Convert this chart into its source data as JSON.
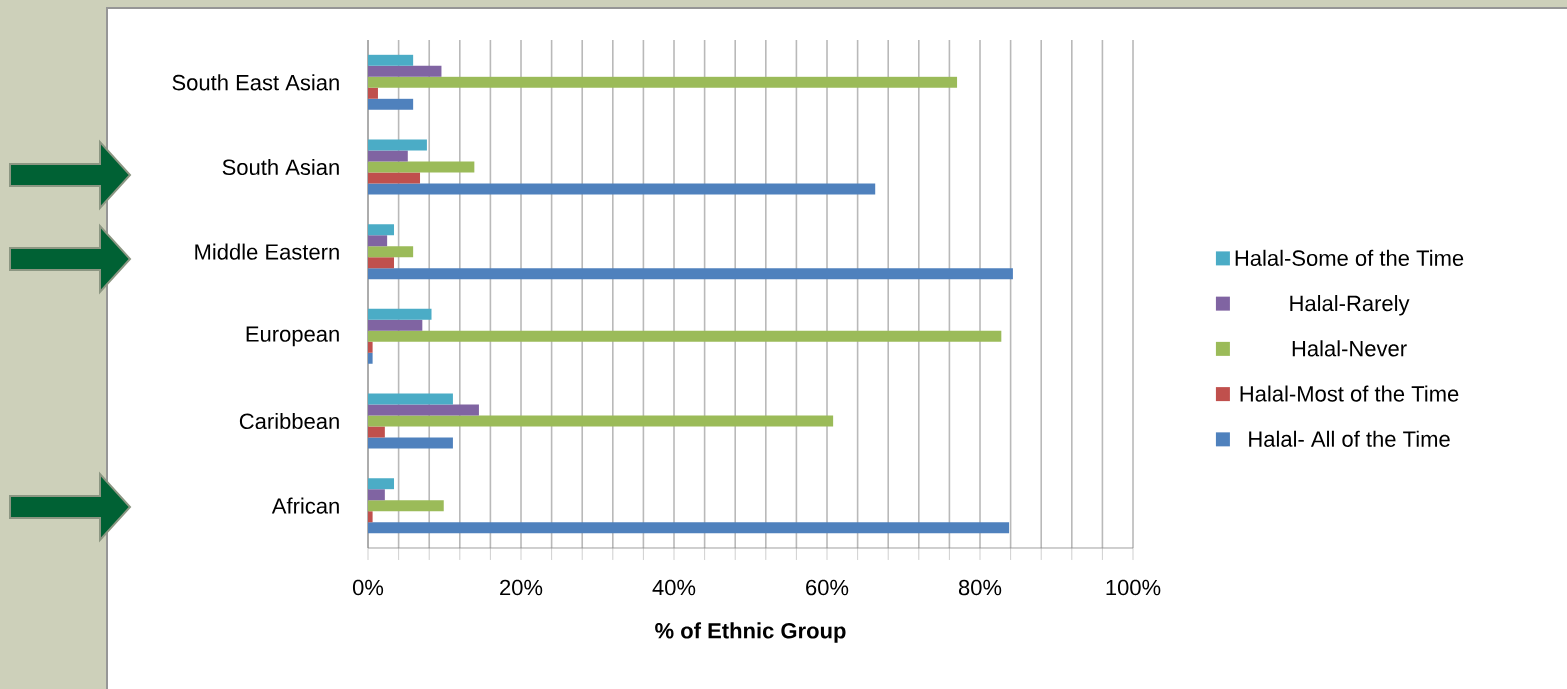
{
  "chart_data": {
    "type": "bar",
    "orientation": "horizontal",
    "xlabel": "% of Ethnic Group",
    "categories": [
      "South East Asian",
      "South Asian",
      "Middle Eastern",
      "European",
      "Caribbean",
      "African"
    ],
    "series": [
      {
        "name": "Halal- All of the Time",
        "color": "#4f81bd",
        "values": [
          5.9,
          66.3,
          84.3,
          0.6,
          11.1,
          83.8
        ]
      },
      {
        "name": "Halal-Most of the Time",
        "color": "#c0504d",
        "values": [
          1.3,
          6.8,
          3.4,
          0.6,
          2.2,
          0.6
        ]
      },
      {
        "name": "Halal-Never",
        "color": "#9bbb59",
        "values": [
          77,
          13.9,
          5.9,
          82.8,
          60.8,
          9.9
        ]
      },
      {
        "name": "Halal-Rarely",
        "color": "#8064a2",
        "values": [
          9.6,
          5.2,
          2.5,
          7.1,
          14.5,
          2.2
        ]
      },
      {
        "name": "Halal-Some of the Time",
        "color": "#4bacc6",
        "values": [
          5.9,
          7.7,
          3.4,
          8.3,
          11.1,
          3.4
        ]
      }
    ],
    "xlim": [
      0,
      100
    ],
    "xticks": [
      {
        "value": 0,
        "label": "0%"
      },
      {
        "value": 4,
        "label": null
      },
      {
        "value": 8,
        "label": null
      },
      {
        "value": 12,
        "label": null
      },
      {
        "value": 16,
        "label": null
      },
      {
        "value": 20,
        "label": "20%"
      },
      {
        "value": 24,
        "label": null
      },
      {
        "value": 28,
        "label": null
      },
      {
        "value": 32,
        "label": null
      },
      {
        "value": 36,
        "label": null
      },
      {
        "value": 40,
        "label": "40%"
      },
      {
        "value": 44,
        "label": null
      },
      {
        "value": 48,
        "label": null
      },
      {
        "value": 52,
        "label": null
      },
      {
        "value": 56,
        "label": null
      },
      {
        "value": 60,
        "label": "60%"
      },
      {
        "value": 64,
        "label": null
      },
      {
        "value": 68,
        "label": null
      },
      {
        "value": 72,
        "label": null
      },
      {
        "value": 76,
        "label": null
      },
      {
        "value": 80,
        "label": "80%"
      },
      {
        "value": 84,
        "label": null
      },
      {
        "value": 88,
        "label": null
      },
      {
        "value": 92,
        "label": null
      },
      {
        "value": 96,
        "label": null
      },
      {
        "value": 100,
        "label": "100%"
      }
    ],
    "grid": "x",
    "legend": "right"
  }
}
